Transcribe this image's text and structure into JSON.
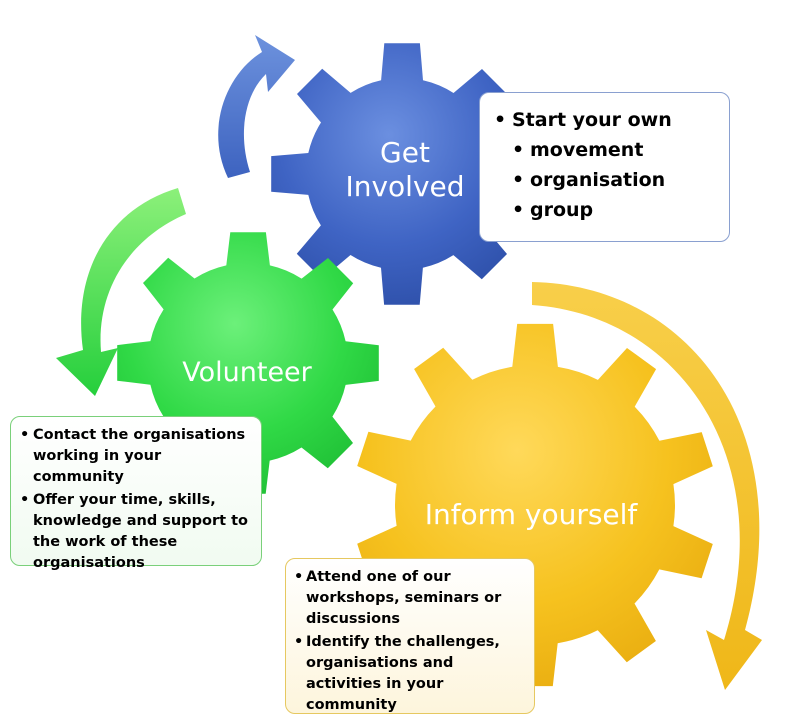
{
  "gears": {
    "get_involved": {
      "line1": "Get",
      "line2": "Involved",
      "color": "#3f64c4"
    },
    "volunteer": {
      "label": "Volunteer",
      "color": "#33d94a"
    },
    "inform_yourself": {
      "label": "Inform yourself",
      "color": "#f5c01f"
    }
  },
  "boxes": {
    "get_involved": {
      "heading": "Start your own",
      "items": [
        "movement",
        "organisation",
        "group"
      ]
    },
    "volunteer": {
      "items": [
        "Contact the organisations working in your community",
        "Offer your time, skills, knowledge and support to the work of these organisations"
      ]
    },
    "inform_yourself": {
      "items": [
        "Attend one of our workshops, seminars or discussions",
        "Identify the challenges, organisations and activities in your community"
      ]
    }
  },
  "arrows": {
    "blue": "#4a73c8",
    "green": "#3ad84a",
    "yellow": "#f2c024"
  }
}
